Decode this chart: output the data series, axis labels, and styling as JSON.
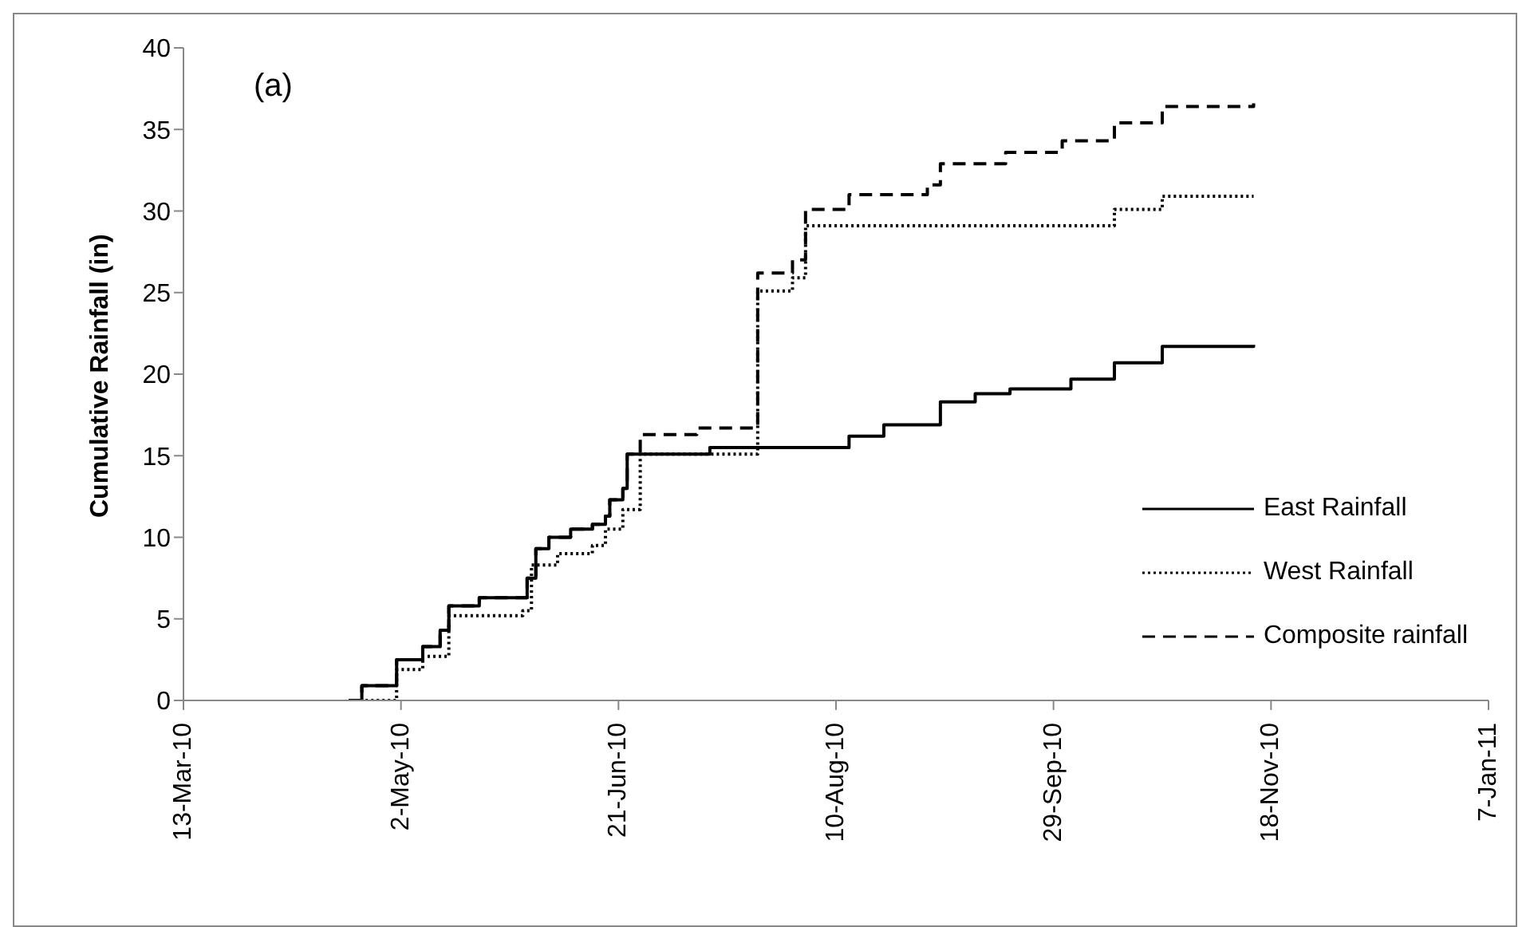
{
  "chart_data": {
    "type": "step",
    "ylabel": "Cumulative Rainfall  (in)",
    "annotations": [
      "(a)"
    ],
    "xlim": [
      "2010-03-13",
      "2011-01-07"
    ],
    "xticks": [
      {
        "value": "2010-03-13",
        "label": "13-Mar-10"
      },
      {
        "value": "2010-05-02",
        "label": "2-May-10"
      },
      {
        "value": "2010-06-21",
        "label": "21-Jun-10"
      },
      {
        "value": "2010-08-10",
        "label": "10-Aug-10"
      },
      {
        "value": "2010-09-29",
        "label": "29-Sep-10"
      },
      {
        "value": "2010-11-18",
        "label": "18-Nov-10"
      },
      {
        "value": "2011-01-07",
        "label": "7-Jan-11"
      }
    ],
    "ylim": [
      0,
      40
    ],
    "yticks": [
      0,
      5,
      10,
      15,
      20,
      25,
      30,
      35,
      40
    ],
    "grid": false,
    "legend": "right",
    "marker": "none",
    "series": [
      {
        "name": "East Rainfall",
        "color": "#000000",
        "line_style": "solid",
        "x": [
          "2010-04-20",
          "2010-04-23",
          "2010-05-01",
          "2010-05-07",
          "2010-05-11",
          "2010-05-13",
          "2010-05-20",
          "2010-05-31",
          "2010-06-02",
          "2010-06-05",
          "2010-06-10",
          "2010-06-15",
          "2010-06-18",
          "2010-06-19",
          "2010-06-22",
          "2010-06-23",
          "2010-07-12",
          "2010-08-13",
          "2010-08-21",
          "2010-09-03",
          "2010-09-11",
          "2010-09-19",
          "2010-10-03",
          "2010-10-13",
          "2010-10-24",
          "2010-11-14"
        ],
        "values": [
          0,
          0.9,
          2.5,
          3.3,
          4.3,
          5.8,
          6.3,
          7.5,
          9.3,
          10.0,
          10.5,
          10.8,
          11.3,
          12.3,
          13.0,
          15.1,
          15.5,
          16.2,
          16.9,
          18.3,
          18.8,
          19.1,
          19.7,
          20.7,
          21.7,
          21.8
        ]
      },
      {
        "name": "West Rainfall",
        "color": "#000000",
        "line_style": "dotted",
        "x": [
          "2010-04-20",
          "2010-05-01",
          "2010-05-07",
          "2010-05-13",
          "2010-05-30",
          "2010-06-01",
          "2010-06-07",
          "2010-06-15",
          "2010-06-18",
          "2010-06-22",
          "2010-06-26",
          "2010-07-23",
          "2010-07-31",
          "2010-08-03",
          "2010-10-13",
          "2010-10-24",
          "2010-11-14"
        ],
        "values": [
          0,
          1.9,
          2.7,
          5.2,
          5.5,
          8.3,
          9.0,
          9.5,
          10.5,
          11.7,
          15.1,
          25.1,
          25.9,
          29.1,
          30.1,
          30.9,
          30.9
        ]
      },
      {
        "name": "Composite rainfall",
        "color": "#000000",
        "line_style": "dashed",
        "x": [
          "2010-04-20",
          "2010-04-23",
          "2010-05-01",
          "2010-05-07",
          "2010-05-11",
          "2010-05-13",
          "2010-05-20",
          "2010-05-31",
          "2010-06-02",
          "2010-06-05",
          "2010-06-10",
          "2010-06-15",
          "2010-06-18",
          "2010-06-19",
          "2010-06-22",
          "2010-06-23",
          "2010-06-26",
          "2010-07-09",
          "2010-07-23",
          "2010-07-31",
          "2010-08-03",
          "2010-08-13",
          "2010-08-31",
          "2010-09-03",
          "2010-09-18",
          "2010-10-01",
          "2010-10-13",
          "2010-10-24",
          "2010-11-14"
        ],
        "values": [
          0,
          0.9,
          2.5,
          3.3,
          4.3,
          5.8,
          6.3,
          7.5,
          9.3,
          10.0,
          10.5,
          10.8,
          11.3,
          12.3,
          13.0,
          15.1,
          16.3,
          16.7,
          26.2,
          27.0,
          30.1,
          31.0,
          31.6,
          32.9,
          33.6,
          34.3,
          35.4,
          36.4,
          36.6
        ]
      }
    ]
  }
}
